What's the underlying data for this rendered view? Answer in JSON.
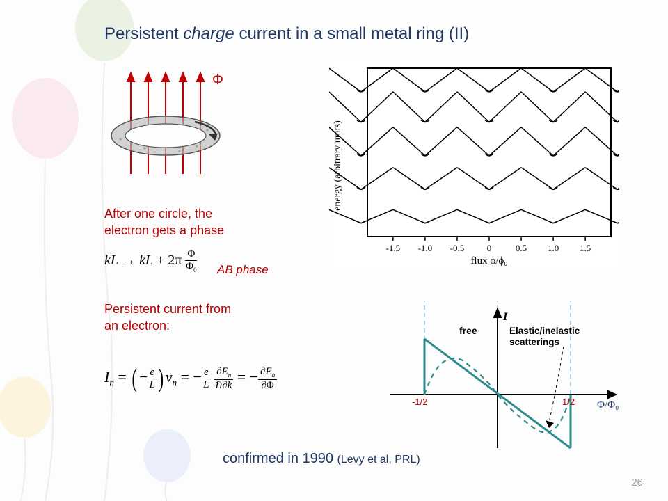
{
  "title_prefix": "Persistent ",
  "title_em": "charge",
  "title_suffix": " current in a small metal ring (II)",
  "phi": "Φ",
  "after_circle": "After one circle, the\nelectron gets a phase",
  "ab_phase": "AB phase",
  "persistent_current": "Persistent current from\nan electron:",
  "footer_main": "confirmed in 1990 ",
  "footer_cite": "(Levy et al, PRL)",
  "page_num": "26",
  "eq1_lhs": "kL → kL + ",
  "eq1_num": "Φ",
  "eq1_den": "Φ₀",
  "energy_plot": {
    "ylabel": "energy (arbitrary units)",
    "xlabel": "flux   ϕ/ϕ₀",
    "xlim": [
      -1.9,
      1.9
    ],
    "xticks": [
      -1.5,
      -1.0,
      -0.5,
      0,
      0.5,
      1.0,
      1.5
    ],
    "xtick_labels": [
      "-1.5",
      "-1.0",
      "-0.5",
      "0",
      "0.5",
      "1.0",
      "1.5"
    ],
    "axis_color": "#000000",
    "line_color": "#000000",
    "line_width": 1.4,
    "background": "#ffffff"
  },
  "lower_plot": {
    "y_label": "I",
    "x_label": "Φ/Φ₀",
    "x_label_color": "#1F3864",
    "xticks": [
      "-1/2",
      "1/2"
    ],
    "xtick_color": "#c00000",
    "free_label": "free",
    "scatter_label": "Elastic/inelastic\nscatterings",
    "label_fontsize": 13,
    "solid_color": "#2E8B8B",
    "dashed_color": "#2E8B8B",
    "guide_color": "#6fb7e8",
    "axis_color": "#000000"
  },
  "balloons": {
    "string_color": "#bcbcbc",
    "colors": [
      "#f7c9d6",
      "#fde5a5",
      "#c9e5a3",
      "#c8d6f3"
    ]
  }
}
